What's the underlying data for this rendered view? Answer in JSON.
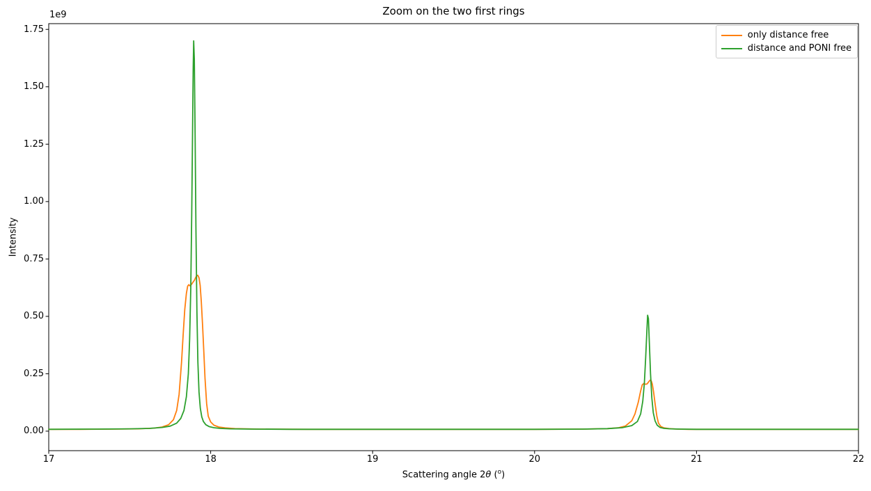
{
  "chart_data": {
    "type": "line",
    "title": "Zoom on the two first rings",
    "xlabel": "Scattering angle 2θ (°)",
    "xlabel_parts": {
      "prefix": "Scattering angle 2",
      "theta": "θ",
      "open_paren": " (",
      "degree": "o",
      "close_paren": ")"
    },
    "ylabel": "Intensity",
    "y_offset_text": "1e9",
    "y_units": "1e9",
    "xlim": [
      17,
      22
    ],
    "ylim": [
      -0.085,
      1.775
    ],
    "grid": false,
    "xticks": {
      "values": [
        17,
        18,
        19,
        20,
        21,
        22
      ],
      "labels": [
        "17",
        "18",
        "19",
        "20",
        "21",
        "22"
      ]
    },
    "yticks": {
      "values": [
        0.0,
        0.25,
        0.5,
        0.75,
        1.0,
        1.25,
        1.5,
        1.75
      ],
      "labels": [
        "0.00",
        "0.25",
        "0.50",
        "0.75",
        "1.00",
        "1.25",
        "1.50",
        "1.75"
      ]
    },
    "legend": {
      "position": "upper right",
      "entries": [
        {
          "label": "only distance free",
          "color": "#ff7f0e"
        },
        {
          "label": "distance and PONI free",
          "color": "#2ca02c"
        }
      ]
    },
    "series": [
      {
        "name": "only distance free",
        "color": "#ff7f0e",
        "x": [
          17.0,
          17.2,
          17.4,
          17.55,
          17.65,
          17.7,
          17.74,
          17.77,
          17.79,
          17.805,
          17.82,
          17.83,
          17.84,
          17.85,
          17.858,
          17.865,
          17.872,
          17.88,
          17.89,
          17.9,
          17.908,
          17.915,
          17.92,
          17.928,
          17.935,
          17.942,
          17.95,
          17.958,
          17.965,
          17.975,
          17.985,
          18.0,
          18.02,
          18.05,
          18.09,
          18.15,
          18.3,
          18.6,
          19.0,
          19.5,
          20.0,
          20.3,
          20.45,
          20.52,
          20.56,
          20.6,
          20.62,
          20.64,
          20.655,
          20.665,
          20.675,
          20.685,
          20.695,
          20.705,
          20.713,
          20.72,
          20.727,
          20.735,
          20.745,
          20.755,
          20.765,
          20.78,
          20.8,
          20.83,
          20.88,
          20.95,
          21.1,
          21.4,
          21.7,
          22.0
        ],
        "y": [
          0.008,
          0.008,
          0.009,
          0.01,
          0.013,
          0.018,
          0.028,
          0.05,
          0.09,
          0.16,
          0.3,
          0.42,
          0.53,
          0.6,
          0.632,
          0.638,
          0.633,
          0.638,
          0.648,
          0.658,
          0.67,
          0.678,
          0.679,
          0.668,
          0.635,
          0.565,
          0.46,
          0.34,
          0.23,
          0.12,
          0.065,
          0.04,
          0.026,
          0.018,
          0.014,
          0.011,
          0.009,
          0.008,
          0.008,
          0.008,
          0.008,
          0.009,
          0.011,
          0.015,
          0.022,
          0.045,
          0.075,
          0.125,
          0.175,
          0.202,
          0.208,
          0.204,
          0.206,
          0.215,
          0.222,
          0.22,
          0.205,
          0.17,
          0.115,
          0.065,
          0.035,
          0.02,
          0.014,
          0.011,
          0.009,
          0.008,
          0.008,
          0.008,
          0.008,
          0.008
        ]
      },
      {
        "name": "distance and PONI free",
        "color": "#2ca02c",
        "x": [
          17.0,
          17.3,
          17.5,
          17.62,
          17.7,
          17.75,
          17.79,
          17.815,
          17.835,
          17.85,
          17.862,
          17.87,
          17.877,
          17.883,
          17.888,
          17.892,
          17.895,
          17.899,
          17.904,
          17.909,
          17.915,
          17.921,
          17.928,
          17.936,
          17.945,
          17.955,
          17.97,
          17.99,
          18.02,
          18.06,
          18.12,
          18.25,
          18.5,
          19.0,
          19.5,
          20.0,
          20.3,
          20.45,
          20.54,
          20.6,
          20.635,
          20.655,
          20.668,
          20.678,
          20.686,
          20.693,
          20.698,
          20.703,
          20.709,
          20.716,
          20.724,
          20.733,
          20.744,
          20.757,
          20.775,
          20.8,
          20.84,
          20.9,
          21.0,
          21.2,
          21.5,
          22.0
        ],
        "y": [
          0.008,
          0.009,
          0.01,
          0.012,
          0.016,
          0.022,
          0.035,
          0.055,
          0.09,
          0.15,
          0.25,
          0.4,
          0.62,
          0.95,
          1.3,
          1.58,
          1.7,
          1.62,
          1.28,
          0.88,
          0.52,
          0.3,
          0.17,
          0.1,
          0.062,
          0.042,
          0.028,
          0.02,
          0.015,
          0.012,
          0.01,
          0.009,
          0.008,
          0.008,
          0.008,
          0.008,
          0.009,
          0.011,
          0.015,
          0.024,
          0.042,
          0.075,
          0.13,
          0.21,
          0.32,
          0.43,
          0.505,
          0.49,
          0.38,
          0.25,
          0.145,
          0.08,
          0.045,
          0.026,
          0.016,
          0.012,
          0.01,
          0.009,
          0.008,
          0.008,
          0.008,
          0.008
        ]
      }
    ]
  }
}
